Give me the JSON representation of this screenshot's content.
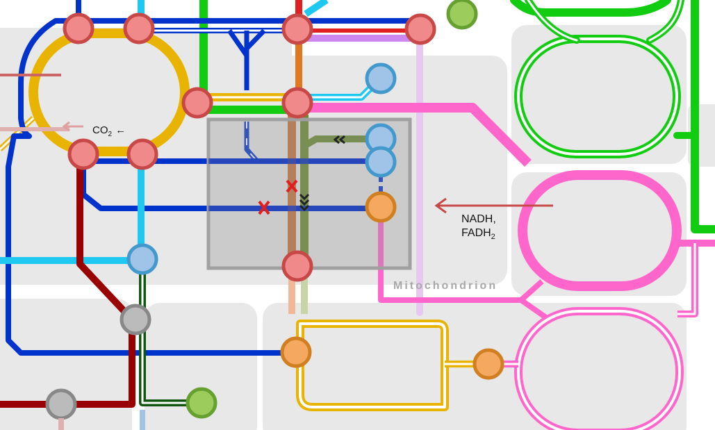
{
  "colors": {
    "background": "#ffffff",
    "region_fill": "#e8e8e8",
    "mitochondrion_box": "#a0a0a0",
    "blue": "#0033cc",
    "cyan": "#1ec8f0",
    "yellow": "#e8b400",
    "green": "#11cc11",
    "darkred": "#990000",
    "red": "#e02020",
    "orange": "#e07820",
    "olive": "#6b8a2e",
    "violet": "#cc88ee",
    "pink": "#ff66cc",
    "darkgreen": "#115511",
    "station_red": "#f08a8a",
    "station_red_border": "#c84848",
    "station_blue": "#a0c4e8",
    "station_blue_border": "#4499cc",
    "station_orange": "#f5a860",
    "station_orange_border": "#d08020",
    "station_green": "#9ccc5c",
    "station_green_border": "#66a030",
    "station_grey": "#bbbbbb",
    "station_grey_border": "#888888"
  },
  "labels": {
    "co2": "CO",
    "co2_sub": "2",
    "co2_arrow": "←",
    "nadh_line1": "NADH,",
    "nadh_line2": "FADH",
    "nadh_sub": "2",
    "mitochondrion": "Mitochondrion"
  },
  "icons": {
    "inhibition_mark": "red-x-icon",
    "direction_chevron": "chevron-icon",
    "input_arrow": "left-arrow-icon"
  }
}
